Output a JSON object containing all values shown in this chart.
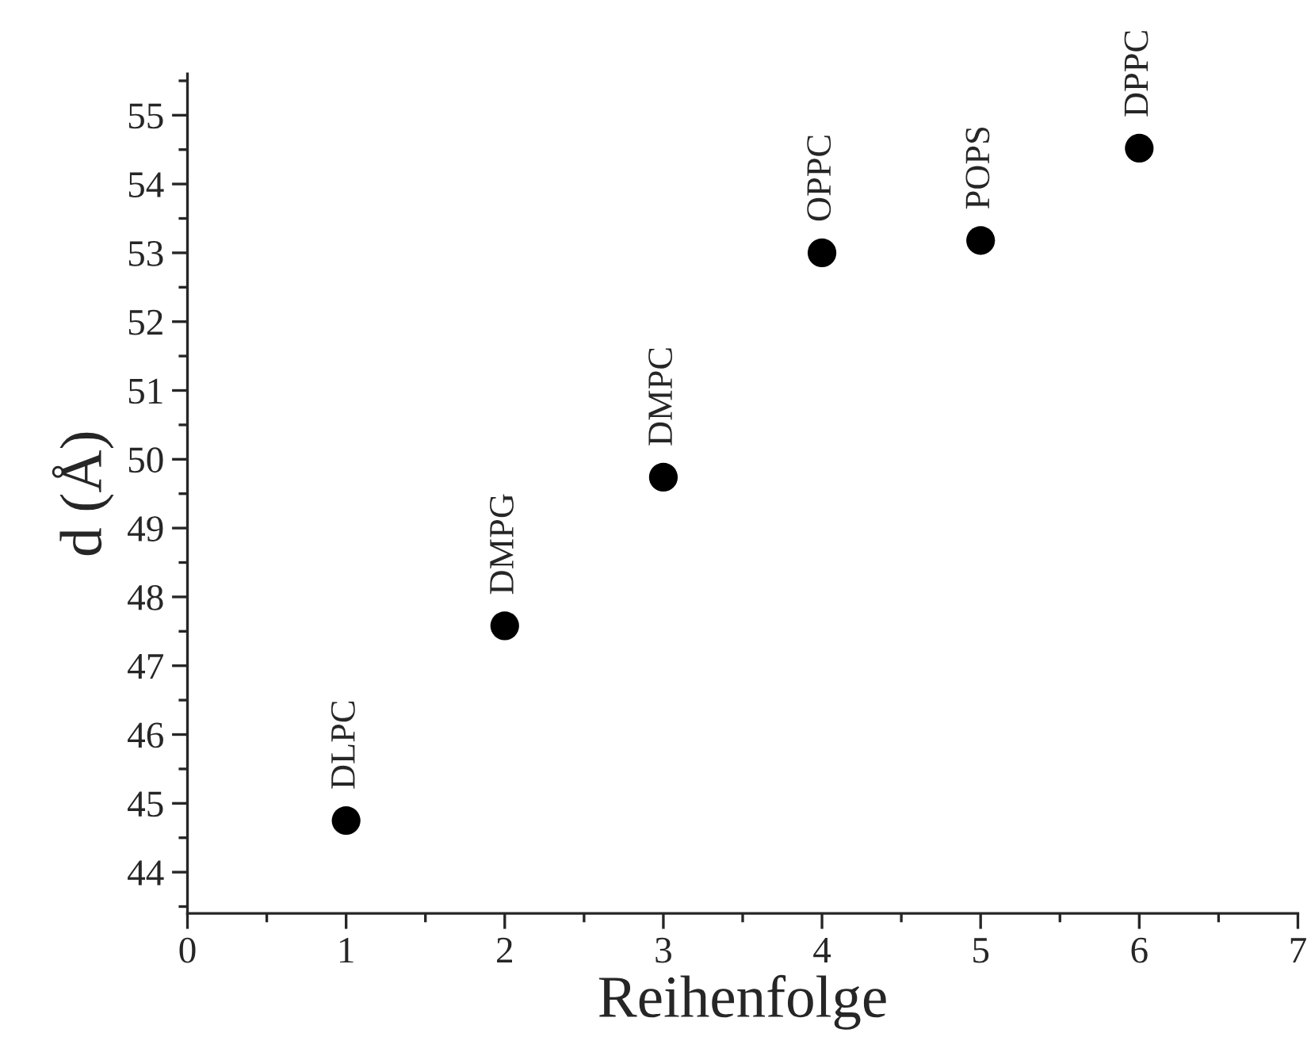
{
  "chart_data": {
    "type": "scatter",
    "xlabel": "Reihenfolge",
    "ylabel": "d (Å)",
    "x": [
      1,
      2,
      3,
      4,
      5,
      6
    ],
    "series": [
      {
        "color": "#000000",
        "values": [
          44.75,
          47.58,
          49.74,
          53.0,
          53.18,
          54.52
        ]
      }
    ],
    "marker": "circle",
    "xlim": [
      0,
      7
    ],
    "xticks": [
      0,
      1,
      2,
      3,
      4,
      5,
      6,
      7
    ],
    "ylim": [
      43.4,
      55.6
    ],
    "yticks": [
      44,
      45,
      46,
      47,
      48,
      49,
      50,
      51,
      52,
      53,
      54,
      55
    ],
    "grid": false,
    "legend": false,
    "annotations": [
      {
        "text": "DLPC",
        "x": 1,
        "y": 44.75
      },
      {
        "text": "DMPG",
        "x": 2,
        "y": 47.58
      },
      {
        "text": "DMPC",
        "x": 3,
        "y": 49.74
      },
      {
        "text": "OPPC",
        "x": 4,
        "y": 53.0
      },
      {
        "text": "POPS",
        "x": 5,
        "y": 53.18
      },
      {
        "text": "DPPC",
        "x": 6,
        "y": 54.52
      }
    ]
  }
}
